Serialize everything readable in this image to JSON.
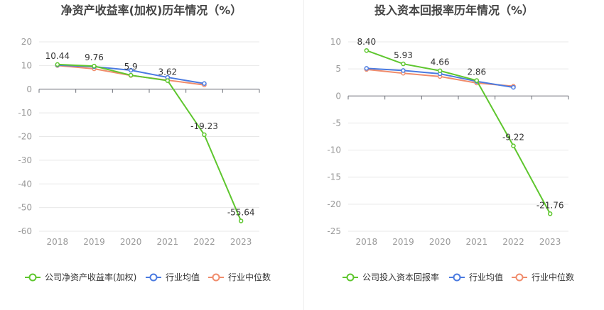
{
  "chart_data": [
    {
      "type": "line",
      "title": "净资产收益率(加权)历年情况（%）",
      "categories": [
        "2018",
        "2019",
        "2020",
        "2021",
        "2022",
        "2023"
      ],
      "ylim": [
        -60,
        20
      ],
      "yticks": [
        20,
        10,
        0,
        -10,
        -20,
        -30,
        -40,
        -50,
        -60
      ],
      "grid": true,
      "legend_position": "bottom",
      "series": [
        {
          "name": "公司净资产收益率(加权)",
          "color": "#5ec62e",
          "values": [
            10.44,
            9.76,
            5.9,
            3.62,
            -19.23,
            -55.64
          ],
          "labels": [
            "10.44",
            "9.76",
            "5.9",
            "3.62",
            "-19.23",
            "-55.64"
          ]
        },
        {
          "name": "行业均值",
          "color": "#4a7ae0",
          "values": [
            10.2,
            9.5,
            8.0,
            5.0,
            2.4,
            null
          ]
        },
        {
          "name": "行业中位数",
          "color": "#f08c6c",
          "values": [
            10.0,
            8.6,
            5.8,
            3.8,
            1.8,
            null
          ]
        }
      ]
    },
    {
      "type": "line",
      "title": "投入资本回报率历年情况（%）",
      "categories": [
        "2018",
        "2019",
        "2020",
        "2021",
        "2022",
        "2023"
      ],
      "ylim": [
        -25,
        10
      ],
      "yticks": [
        10,
        5,
        0,
        -5,
        -10,
        -15,
        -20,
        -25
      ],
      "grid": true,
      "legend_position": "bottom",
      "series": [
        {
          "name": "公司投入资本回报率",
          "color": "#5ec62e",
          "values": [
            8.4,
            5.93,
            4.66,
            2.86,
            -9.22,
            -21.76
          ],
          "labels": [
            "8.40",
            "5.93",
            "4.66",
            "2.86",
            "-9.22",
            "-21.76"
          ]
        },
        {
          "name": "行业均值",
          "color": "#4a7ae0",
          "values": [
            5.1,
            4.7,
            4.1,
            2.7,
            1.6,
            null
          ]
        },
        {
          "name": "行业中位数",
          "color": "#f08c6c",
          "values": [
            4.9,
            4.2,
            3.6,
            2.4,
            1.8,
            null
          ]
        }
      ]
    }
  ]
}
